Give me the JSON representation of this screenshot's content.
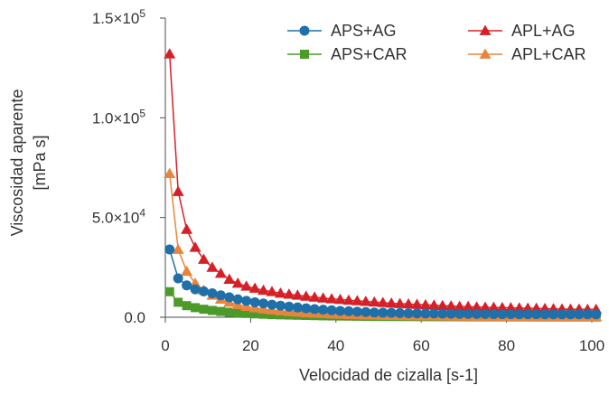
{
  "chart_data": {
    "type": "line",
    "xlabel": "Velocidad de cizalla [s-1]",
    "ylabel_line1": "Viscosidad aparente",
    "ylabel_line2": "[mPa s]",
    "xlim": [
      0,
      100
    ],
    "ylim": [
      0,
      150000
    ],
    "x_ticks": [
      0,
      20,
      40,
      60,
      80,
      100
    ],
    "x_tick_labels": [
      "0",
      "20",
      "40",
      "60",
      "80",
      "100"
    ],
    "y_ticks": [
      0,
      50000,
      100000,
      150000
    ],
    "y_tick_labels": [
      {
        "base": "0.0",
        "exp": ""
      },
      {
        "base": "5.0×10",
        "exp": "4"
      },
      {
        "base": "1.0×10",
        "exp": "5"
      },
      {
        "base": "1.5×10",
        "exp": "5"
      }
    ],
    "x": [
      1,
      3,
      5,
      7,
      9,
      11,
      13,
      15,
      17,
      19,
      21,
      23,
      25,
      27,
      29,
      31,
      33,
      35,
      37,
      39,
      41,
      43,
      45,
      47,
      49,
      51,
      53,
      55,
      57,
      59,
      61,
      63,
      65,
      67,
      69,
      71,
      73,
      75,
      77,
      79,
      81,
      83,
      85,
      87,
      89,
      91,
      93,
      95,
      97,
      99,
      101
    ],
    "series": [
      {
        "name": "APS+AG",
        "color": "#1f6fa8",
        "marker": "circle",
        "values": [
          34000,
          19500,
          16000,
          14000,
          13000,
          12000,
          11000,
          10000,
          9000,
          8200,
          7500,
          6900,
          6300,
          5800,
          5300,
          4900,
          4500,
          4100,
          3800,
          3500,
          3200,
          3000,
          2800,
          2600,
          2400,
          2300,
          2200,
          2100,
          2000,
          1950,
          1900,
          1850,
          1800,
          1750,
          1700,
          1700,
          1650,
          1650,
          1600,
          1600,
          1600,
          1550,
          1550,
          1550,
          1500,
          1500,
          1500,
          1500,
          1500,
          1500,
          1500
        ]
      },
      {
        "name": "APL+AG",
        "color": "#d62027",
        "marker": "triangle",
        "values": [
          132000,
          63000,
          44000,
          35000,
          29000,
          25000,
          22000,
          19000,
          17000,
          15500,
          14500,
          13500,
          12800,
          12000,
          11500,
          11000,
          10500,
          10000,
          9600,
          9200,
          8900,
          8500,
          8200,
          7900,
          7600,
          7300,
          7000,
          6800,
          6600,
          6400,
          6200,
          6000,
          5800,
          5600,
          5400,
          5300,
          5100,
          5000,
          4900,
          4800,
          4700,
          4600,
          4500,
          4400,
          4300,
          4200,
          4100,
          4000,
          4000,
          3900,
          3900
        ]
      },
      {
        "name": "APS+CAR",
        "color": "#4c9a2a",
        "marker": "square",
        "values": [
          12800,
          7500,
          5800,
          4800,
          4000,
          3400,
          2900,
          2500,
          2200,
          1900,
          1700,
          1500,
          1300,
          1200,
          1100,
          1000,
          900,
          800,
          700,
          650,
          600,
          550,
          500,
          450,
          400,
          380,
          360,
          340,
          320,
          300,
          280,
          260,
          240,
          230,
          220,
          210,
          200,
          190,
          180,
          170,
          160,
          150,
          140,
          130,
          120,
          110,
          100,
          100,
          100,
          100,
          100
        ]
      },
      {
        "name": "APL+CAR",
        "color": "#e8853d",
        "marker": "triangle",
        "values": [
          72000,
          34000,
          23000,
          17000,
          13500,
          11000,
          9000,
          7500,
          6300,
          5400,
          4700,
          4100,
          3600,
          3200,
          2800,
          2500,
          2200,
          2000,
          1800,
          1600,
          1450,
          1300,
          1200,
          1100,
          1000,
          900,
          850,
          800,
          750,
          700,
          650,
          600,
          560,
          520,
          480,
          450,
          420,
          390,
          360,
          340,
          320,
          300,
          280,
          260,
          240,
          220,
          200,
          190,
          180,
          170,
          160
        ]
      }
    ],
    "legend": {
      "placement": "top-right",
      "order": [
        "APS+AG",
        "APL+AG",
        "APS+CAR",
        "APL+CAR"
      ]
    }
  }
}
